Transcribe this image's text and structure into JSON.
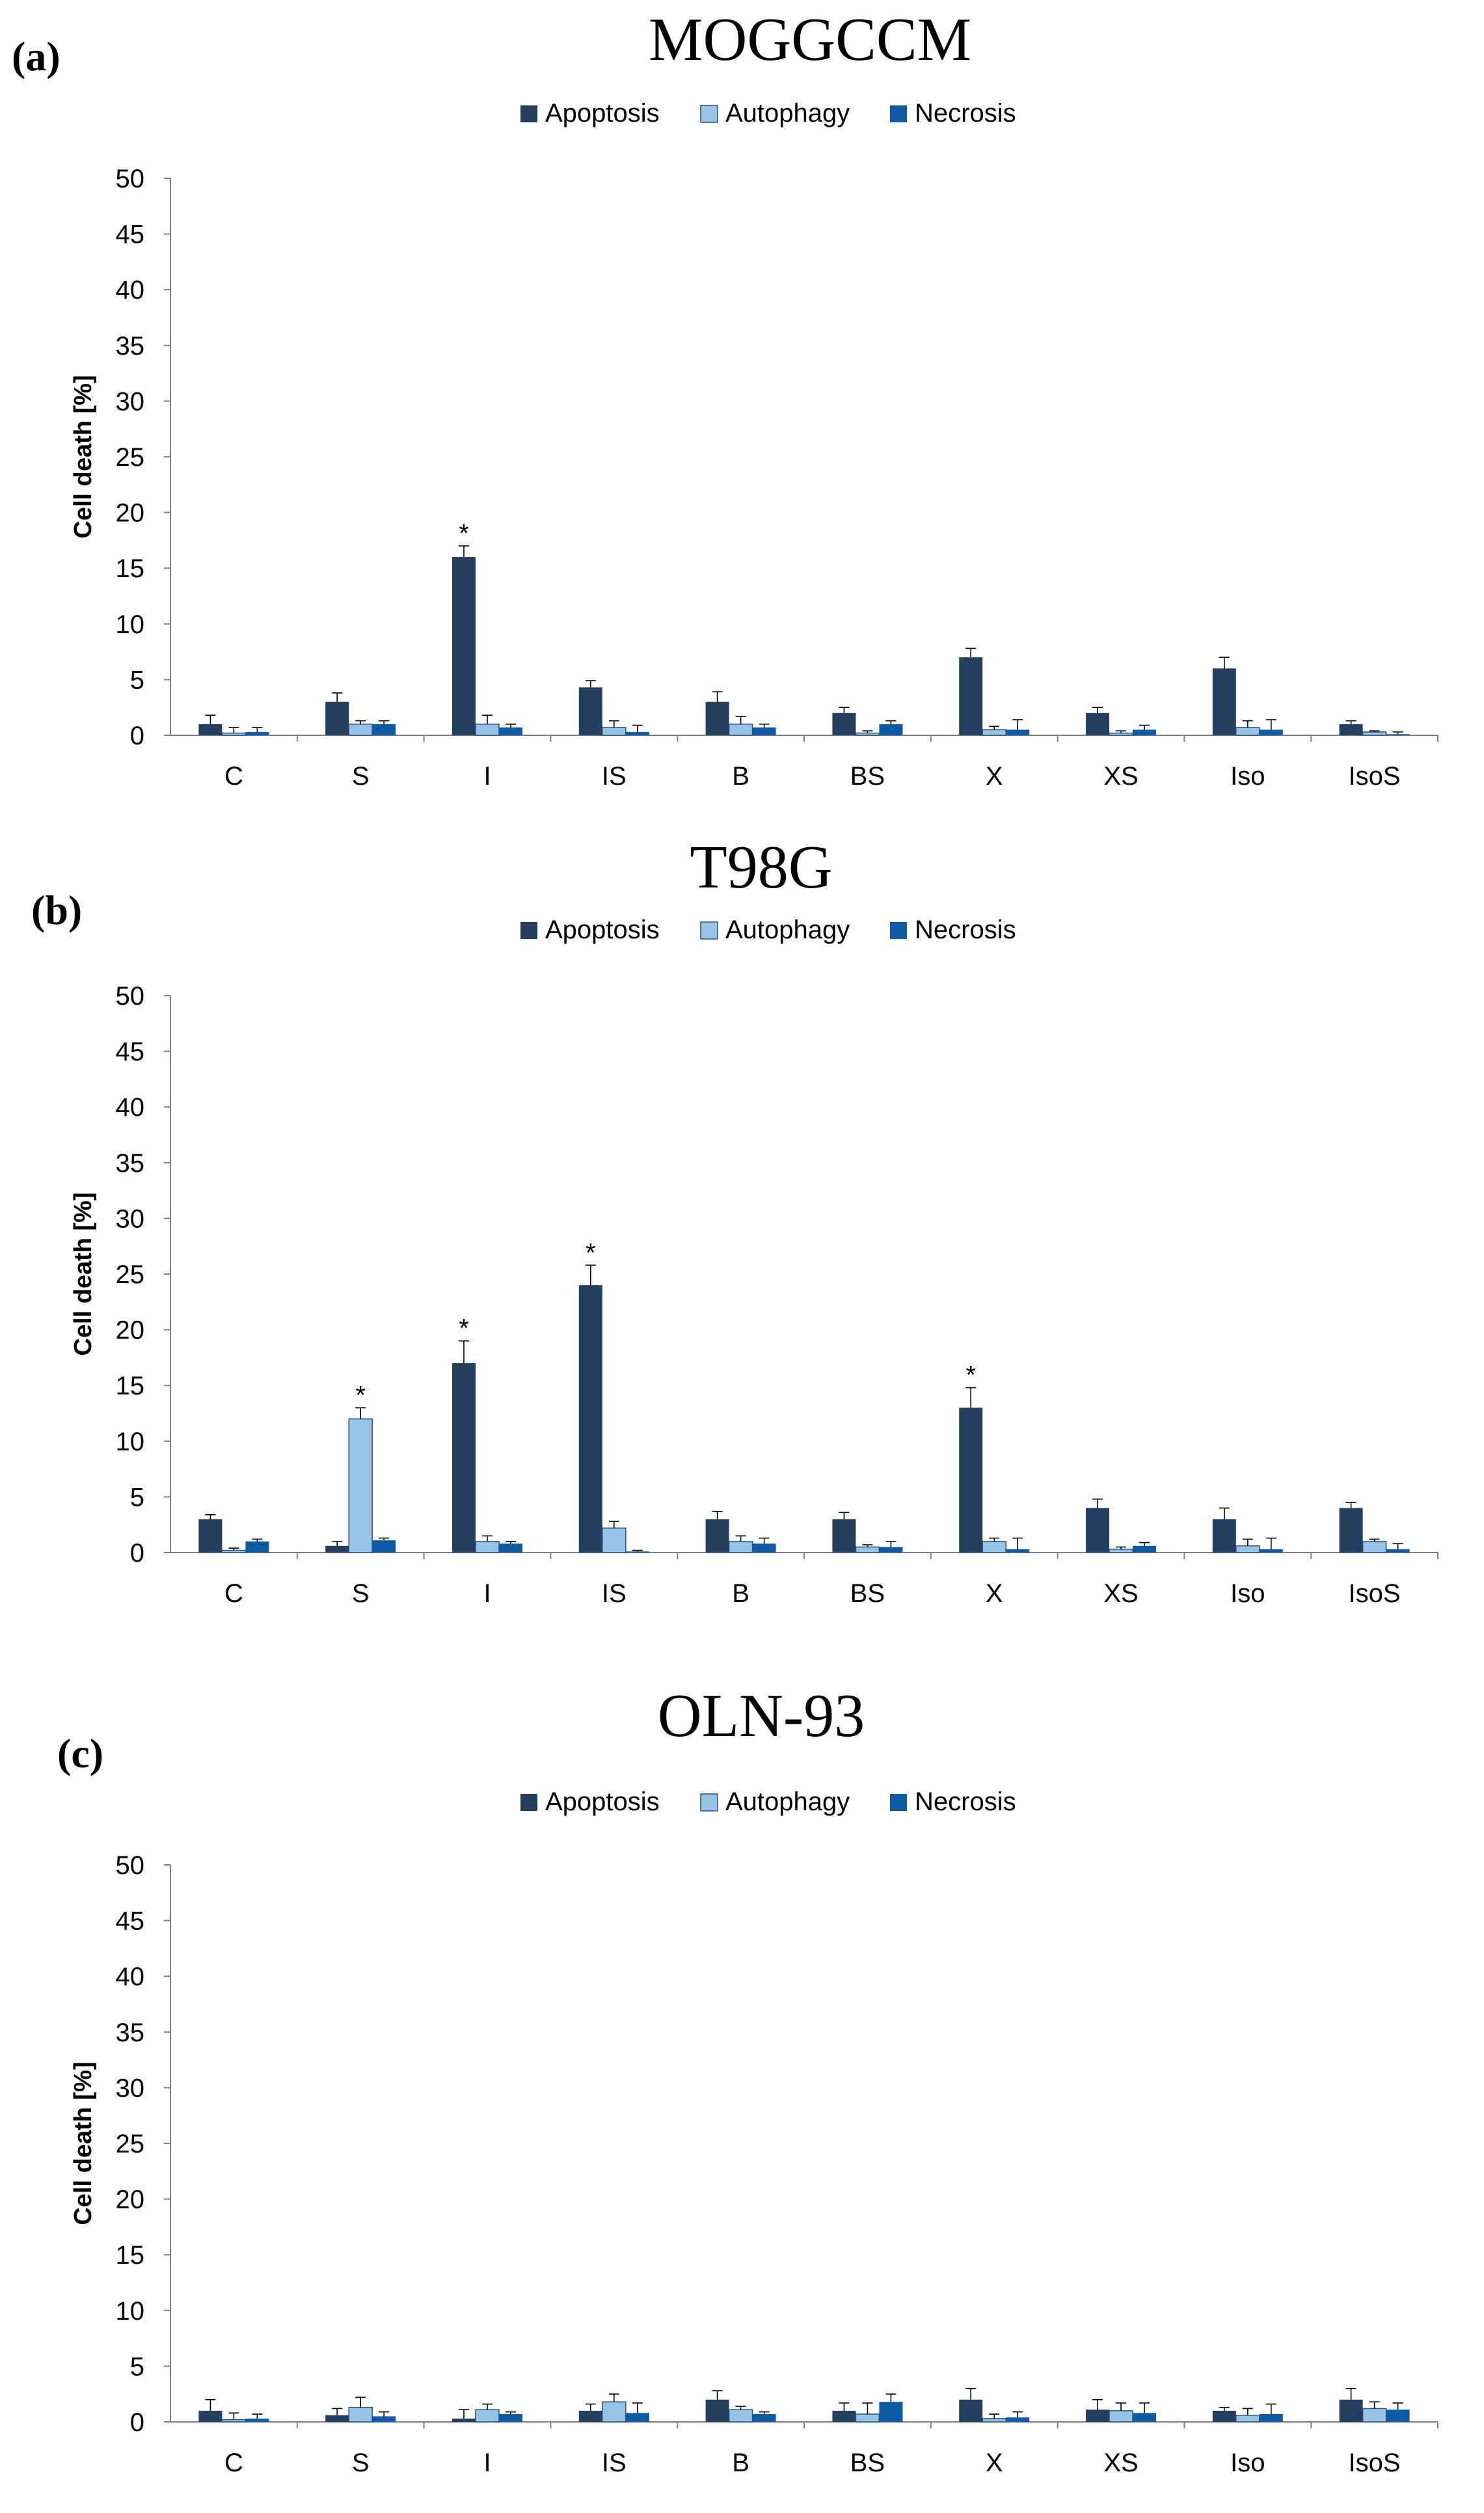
{
  "chart_data": [
    {
      "type": "bar",
      "panel_label": "(a)",
      "title": "MOGGCCM",
      "ylabel": "Cell death [%]",
      "xlabel": "",
      "ylim": [
        0,
        50
      ],
      "yticks": [
        "0",
        "5",
        "10",
        "15",
        "20",
        "25",
        "30",
        "35",
        "40",
        "45",
        "50"
      ],
      "categories": [
        "C",
        "S",
        "I",
        "IS",
        "B",
        "BS",
        "X",
        "XS",
        "Iso",
        "IsoS"
      ],
      "legend_position": "top",
      "series": [
        {
          "name": "Apoptosis",
          "color": "#243F60",
          "values": [
            1,
            3,
            16,
            4.3,
            3,
            2,
            7,
            2,
            6,
            1
          ],
          "errors": [
            0.8,
            0.8,
            1.0,
            0.6,
            0.9,
            0.5,
            0.8,
            0.5,
            1.0,
            0.3
          ]
        },
        {
          "name": "Autophagy",
          "color": "#95C4E6",
          "values": [
            0.2,
            1,
            1,
            0.7,
            1,
            0.2,
            0.5,
            0.2,
            0.7,
            0.3
          ],
          "errors": [
            0.5,
            0.3,
            0.8,
            0.6,
            0.7,
            0.2,
            0.3,
            0.2,
            0.6,
            0.1
          ]
        },
        {
          "name": "Necrosis",
          "color": "#0E5AA7",
          "values": [
            0.3,
            1,
            0.7,
            0.3,
            0.7,
            1,
            0.5,
            0.5,
            0.5,
            0.1
          ],
          "errors": [
            0.4,
            0.3,
            0.3,
            0.6,
            0.3,
            0.3,
            0.9,
            0.4,
            0.9,
            0.2
          ]
        }
      ],
      "significance": [
        {
          "category": "I",
          "series": "Apoptosis",
          "mark": "*"
        }
      ]
    },
    {
      "type": "bar",
      "panel_label": "(b)",
      "title": "T98G",
      "ylabel": "Cell death [%]",
      "xlabel": "",
      "ylim": [
        0,
        50
      ],
      "yticks": [
        "0",
        "5",
        "10",
        "15",
        "20",
        "25",
        "30",
        "35",
        "40",
        "45",
        "50"
      ],
      "categories": [
        "C",
        "S",
        "I",
        "IS",
        "B",
        "BS",
        "X",
        "XS",
        "Iso",
        "IsoS"
      ],
      "legend_position": "top",
      "series": [
        {
          "name": "Apoptosis",
          "color": "#243F60",
          "values": [
            3,
            0.6,
            17,
            24,
            3,
            3,
            13,
            4,
            3,
            4
          ],
          "errors": [
            0.4,
            0.4,
            2.0,
            1.8,
            0.7,
            0.6,
            1.8,
            0.8,
            1.0,
            0.5
          ]
        },
        {
          "name": "Autophagy",
          "color": "#95C4E6",
          "values": [
            0.2,
            12,
            1,
            2.2,
            1,
            0.5,
            1,
            0.3,
            0.6,
            1
          ],
          "errors": [
            0.2,
            1.0,
            0.5,
            0.6,
            0.5,
            0.2,
            0.3,
            0.2,
            0.6,
            0.2
          ]
        },
        {
          "name": "Necrosis",
          "color": "#0E5AA7",
          "values": [
            1,
            1.1,
            0.8,
            0.1,
            0.8,
            0.5,
            0.3,
            0.6,
            0.3,
            0.3
          ],
          "errors": [
            0.2,
            0.2,
            0.2,
            0.1,
            0.5,
            0.5,
            1.0,
            0.3,
            1.0,
            0.5
          ]
        }
      ],
      "significance": [
        {
          "category": "S",
          "series": "Autophagy",
          "mark": "*"
        },
        {
          "category": "I",
          "series": "Apoptosis",
          "mark": "*"
        },
        {
          "category": "IS",
          "series": "Apoptosis",
          "mark": "*"
        },
        {
          "category": "X",
          "series": "Apoptosis",
          "mark": "*"
        }
      ]
    },
    {
      "type": "bar",
      "panel_label": "(c)",
      "title": "OLN-93",
      "ylabel": "Cell death [%]",
      "xlabel": "",
      "ylim": [
        0,
        50
      ],
      "yticks": [
        "0",
        "5",
        "10",
        "15",
        "20",
        "25",
        "30",
        "35",
        "40",
        "45",
        "50"
      ],
      "categories": [
        "C",
        "S",
        "I",
        "IS",
        "B",
        "BS",
        "X",
        "XS",
        "Iso",
        "IsoS"
      ],
      "legend_position": "top",
      "series": [
        {
          "name": "Apoptosis",
          "color": "#243F60",
          "values": [
            1,
            0.6,
            0.3,
            1,
            2,
            1,
            2,
            1.1,
            1,
            2
          ],
          "errors": [
            1.0,
            0.6,
            0.8,
            0.6,
            0.8,
            0.7,
            1.0,
            0.9,
            0.3,
            1.0
          ]
        },
        {
          "name": "Autophagy",
          "color": "#95C4E6",
          "values": [
            0.2,
            1.3,
            1.1,
            1.8,
            1.1,
            0.7,
            0.3,
            1,
            0.6,
            1.2
          ],
          "errors": [
            0.6,
            0.9,
            0.5,
            0.7,
            0.3,
            1.0,
            0.4,
            0.7,
            0.6,
            0.6
          ]
        },
        {
          "name": "Necrosis",
          "color": "#0E5AA7",
          "values": [
            0.3,
            0.5,
            0.7,
            0.8,
            0.7,
            1.8,
            0.4,
            0.8,
            0.7,
            1.1
          ],
          "errors": [
            0.4,
            0.4,
            0.2,
            0.9,
            0.2,
            0.7,
            0.5,
            0.9,
            0.9,
            0.6
          ]
        }
      ],
      "significance": []
    }
  ]
}
